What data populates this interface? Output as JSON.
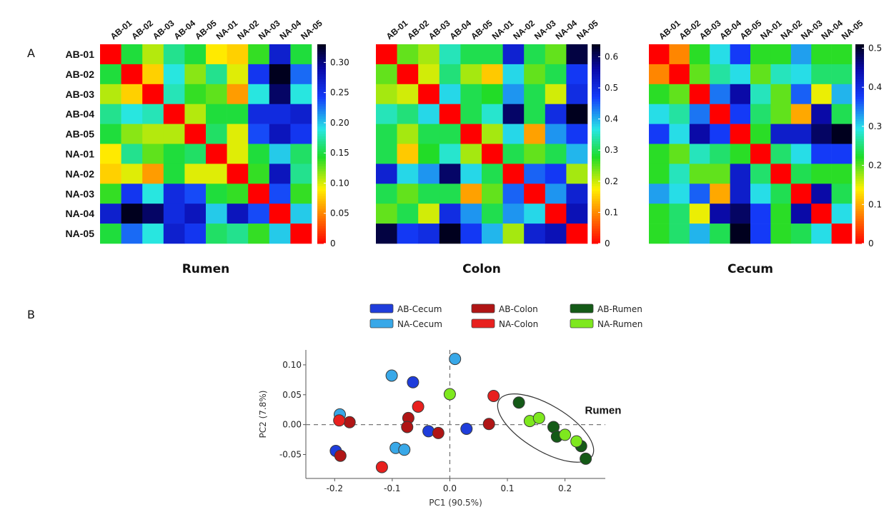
{
  "panel_labels": {
    "a": "A",
    "b": "B"
  },
  "colors": {
    "axis": "#555555",
    "cell_border": "none"
  },
  "chart_data": [
    {
      "type": "heatmap",
      "title": "Rumen",
      "rows": [
        "AB-01",
        "AB-02",
        "AB-03",
        "AB-04",
        "AB-05",
        "NA-01",
        "NA-02",
        "NA-03",
        "NA-04",
        "NA-05"
      ],
      "cols": [
        "AB-01",
        "AB-02",
        "AB-03",
        "AB-04",
        "AB-05",
        "NA-01",
        "NA-02",
        "NA-03",
        "NA-04",
        "NA-05"
      ],
      "vmin": 0,
      "vmax": 0.33,
      "colorbar_ticks": [
        {
          "v": 0,
          "label": "0"
        },
        {
          "v": 0.05,
          "label": "0.05"
        },
        {
          "v": 0.1,
          "label": "0.10"
        },
        {
          "v": 0.15,
          "label": "0.15"
        },
        {
          "v": 0.2,
          "label": "0.20"
        },
        {
          "v": 0.25,
          "label": "0.25"
        },
        {
          "v": 0.3,
          "label": "0.30"
        }
      ],
      "colormap": "jet_reversed",
      "values": [
        [
          0.0,
          0.15,
          0.11,
          0.17,
          0.15,
          0.09,
          0.08,
          0.14,
          0.27,
          0.15
        ],
        [
          0.15,
          0.0,
          0.08,
          0.19,
          0.12,
          0.17,
          0.1,
          0.25,
          0.33,
          0.23
        ],
        [
          0.11,
          0.08,
          0.0,
          0.18,
          0.14,
          0.13,
          0.06,
          0.19,
          0.31,
          0.19
        ],
        [
          0.17,
          0.19,
          0.18,
          0.0,
          0.11,
          0.15,
          0.15,
          0.26,
          0.26,
          0.27
        ],
        [
          0.15,
          0.12,
          0.11,
          0.11,
          0.0,
          0.16,
          0.1,
          0.24,
          0.28,
          0.25
        ],
        [
          0.09,
          0.17,
          0.13,
          0.15,
          0.16,
          0.0,
          0.1,
          0.15,
          0.2,
          0.16
        ],
        [
          0.08,
          0.1,
          0.06,
          0.15,
          0.1,
          0.1,
          0.0,
          0.14,
          0.28,
          0.17
        ],
        [
          0.14,
          0.25,
          0.19,
          0.26,
          0.24,
          0.15,
          0.14,
          0.0,
          0.24,
          0.14
        ],
        [
          0.27,
          0.33,
          0.31,
          0.26,
          0.28,
          0.2,
          0.28,
          0.24,
          0.0,
          0.2
        ],
        [
          0.15,
          0.23,
          0.19,
          0.27,
          0.25,
          0.16,
          0.17,
          0.14,
          0.2,
          0.0
        ]
      ]
    },
    {
      "type": "heatmap",
      "title": "Colon",
      "rows": [],
      "cols": [
        "AB-01",
        "AB-02",
        "AB-03",
        "AB-04",
        "AB-05",
        "NA-01",
        "NA-02",
        "NA-03",
        "NA-04",
        "NA-05"
      ],
      "vmin": 0,
      "vmax": 0.64,
      "colorbar_ticks": [
        {
          "v": 0,
          "label": "0"
        },
        {
          "v": 0.1,
          "label": "0.1"
        },
        {
          "v": 0.2,
          "label": "0.2"
        },
        {
          "v": 0.3,
          "label": "0.3"
        },
        {
          "v": 0.4,
          "label": "0.4"
        },
        {
          "v": 0.5,
          "label": "0.5"
        },
        {
          "v": 0.6,
          "label": "0.6"
        }
      ],
      "colormap": "jet_reversed",
      "values": [
        [
          0.0,
          0.25,
          0.22,
          0.35,
          0.3,
          0.3,
          0.52,
          0.3,
          0.25,
          0.62
        ],
        [
          0.25,
          0.0,
          0.2,
          0.32,
          0.22,
          0.15,
          0.38,
          0.25,
          0.3,
          0.48
        ],
        [
          0.22,
          0.2,
          0.0,
          0.38,
          0.3,
          0.28,
          0.42,
          0.3,
          0.2,
          0.5
        ],
        [
          0.35,
          0.32,
          0.38,
          0.0,
          0.3,
          0.36,
          0.6,
          0.3,
          0.5,
          0.64
        ],
        [
          0.3,
          0.22,
          0.3,
          0.3,
          0.0,
          0.22,
          0.38,
          0.12,
          0.42,
          0.48
        ],
        [
          0.3,
          0.15,
          0.28,
          0.36,
          0.22,
          0.0,
          0.3,
          0.25,
          0.3,
          0.4
        ],
        [
          0.52,
          0.38,
          0.42,
          0.6,
          0.38,
          0.3,
          0.0,
          0.45,
          0.48,
          0.22
        ],
        [
          0.3,
          0.25,
          0.3,
          0.3,
          0.12,
          0.25,
          0.45,
          0.0,
          0.42,
          0.52
        ],
        [
          0.25,
          0.3,
          0.2,
          0.5,
          0.42,
          0.3,
          0.42,
          0.38,
          0.0,
          0.55
        ],
        [
          0.62,
          0.48,
          0.5,
          0.64,
          0.48,
          0.4,
          0.22,
          0.52,
          0.55,
          0.0
        ]
      ]
    },
    {
      "type": "heatmap",
      "title": "Cecum",
      "rows": [],
      "cols": [
        "AB-01",
        "AB-02",
        "AB-03",
        "AB-04",
        "AB-05",
        "NA-01",
        "NA-02",
        "NA-03",
        "NA-04",
        "NA-05"
      ],
      "vmin": 0,
      "vmax": 0.51,
      "colorbar_ticks": [
        {
          "v": 0,
          "label": "0"
        },
        {
          "v": 0.1,
          "label": "0.1"
        },
        {
          "v": 0.2,
          "label": "0.2"
        },
        {
          "v": 0.3,
          "label": "0.3"
        },
        {
          "v": 0.4,
          "label": "0.4"
        },
        {
          "v": 0.5,
          "label": "0.5"
        }
      ],
      "colormap": "jet_reversed",
      "values": [
        [
          0.0,
          0.08,
          0.22,
          0.3,
          0.38,
          0.22,
          0.22,
          0.33,
          0.22,
          0.22
        ],
        [
          0.08,
          0.0,
          0.2,
          0.27,
          0.3,
          0.2,
          0.28,
          0.3,
          0.25,
          0.25
        ],
        [
          0.22,
          0.2,
          0.0,
          0.35,
          0.45,
          0.28,
          0.2,
          0.36,
          0.15,
          0.32
        ],
        [
          0.3,
          0.27,
          0.35,
          0.0,
          0.38,
          0.25,
          0.2,
          0.1,
          0.45,
          0.24
        ],
        [
          0.38,
          0.3,
          0.45,
          0.38,
          0.0,
          0.22,
          0.42,
          0.42,
          0.48,
          0.51
        ],
        [
          0.22,
          0.2,
          0.28,
          0.25,
          0.22,
          0.0,
          0.25,
          0.3,
          0.38,
          0.38
        ],
        [
          0.22,
          0.28,
          0.2,
          0.2,
          0.42,
          0.25,
          0.0,
          0.24,
          0.22,
          0.22
        ],
        [
          0.33,
          0.3,
          0.36,
          0.1,
          0.42,
          0.3,
          0.24,
          0.0,
          0.45,
          0.24
        ],
        [
          0.22,
          0.25,
          0.15,
          0.45,
          0.48,
          0.38,
          0.22,
          0.45,
          0.0,
          0.3
        ],
        [
          0.22,
          0.25,
          0.32,
          0.24,
          0.51,
          0.38,
          0.22,
          0.24,
          0.3,
          0.0
        ]
      ]
    },
    {
      "type": "scatter",
      "xlabel": "PC1 (90.5%)",
      "ylabel": "PC2 (7.8%)",
      "xlim": [
        -0.25,
        0.27
      ],
      "ylim": [
        -0.09,
        0.125
      ],
      "xticks": [
        {
          "v": -0.2,
          "label": "-0.2"
        },
        {
          "v": -0.1,
          "label": "-0.1"
        },
        {
          "v": 0.0,
          "label": "0.0"
        },
        {
          "v": 0.1,
          "label": "0.1"
        },
        {
          "v": 0.2,
          "label": "0.2"
        }
      ],
      "yticks": [
        {
          "v": -0.05,
          "label": "-0.05"
        },
        {
          "v": 0.0,
          "label": "0.00"
        },
        {
          "v": 0.05,
          "label": "0.05"
        },
        {
          "v": 0.1,
          "label": "0.10"
        }
      ],
      "grid": false,
      "legend_position": "top",
      "annotation": "Rumen",
      "series": [
        {
          "name": "AB-Cecum",
          "color": "#1f3ddb",
          "points": [
            [
              -0.198,
              -0.044
            ],
            [
              -0.064,
              0.071
            ],
            [
              -0.037,
              -0.011
            ],
            [
              0.029,
              -0.007
            ]
          ]
        },
        {
          "name": "AB-Colon",
          "color": "#b01515",
          "points": [
            [
              -0.19,
              -0.052
            ],
            [
              -0.174,
              0.004
            ],
            [
              -0.072,
              0.011
            ],
            [
              -0.074,
              -0.004
            ],
            [
              -0.02,
              -0.014
            ],
            [
              0.068,
              0.001
            ]
          ]
        },
        {
          "name": "AB-Rumen",
          "color": "#145a17",
          "points": [
            [
              0.12,
              0.037
            ],
            [
              0.18,
              -0.004
            ],
            [
              0.186,
              -0.02
            ],
            [
              0.228,
              -0.036
            ],
            [
              0.236,
              -0.057
            ]
          ]
        },
        {
          "name": "NA-Cecum",
          "color": "#38a8e8",
          "points": [
            [
              -0.191,
              0.017
            ],
            [
              -0.101,
              0.082
            ],
            [
              -0.094,
              -0.039
            ],
            [
              -0.079,
              -0.042
            ],
            [
              0.009,
              0.11
            ]
          ]
        },
        {
          "name": "NA-Colon",
          "color": "#e8201e",
          "points": [
            [
              -0.192,
              0.007
            ],
            [
              -0.118,
              -0.071
            ],
            [
              -0.055,
              0.03
            ],
            [
              0.076,
              0.048
            ]
          ]
        },
        {
          "name": "NA-Rumen",
          "color": "#7ee81e",
          "points": [
            [
              0.0,
              0.051
            ],
            [
              0.139,
              0.006
            ],
            [
              0.155,
              0.011
            ],
            [
              0.2,
              -0.017
            ],
            [
              0.22,
              -0.028
            ]
          ]
        }
      ]
    }
  ]
}
